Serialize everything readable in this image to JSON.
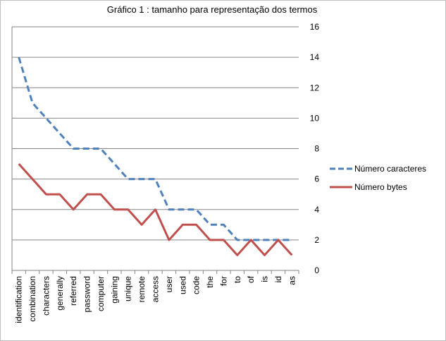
{
  "chart_data": {
    "type": "line",
    "title": "Gráfico 1 : tamanho para representação dos termos",
    "categories": [
      "identification",
      "combination",
      "characters",
      "generally",
      "referred",
      "password",
      "computer",
      "gaining",
      "unique",
      "remote",
      "access",
      "user",
      "used",
      "code",
      "the",
      "for",
      "to",
      "of",
      "is",
      "id",
      "as"
    ],
    "series": [
      {
        "name": "Número caracteres",
        "color": "#4f81bd",
        "style": "dashed",
        "values": [
          14,
          11,
          10,
          9,
          8,
          8,
          8,
          7,
          6,
          6,
          6,
          4,
          4,
          4,
          3,
          3,
          2,
          2,
          2,
          2,
          2
        ]
      },
      {
        "name": "Número bytes",
        "color": "#c0504d",
        "style": "solid",
        "values": [
          7,
          6,
          5,
          5,
          4,
          5,
          5,
          4,
          4,
          3,
          4,
          2,
          3,
          3,
          2,
          2,
          1,
          2,
          1,
          2,
          1
        ]
      }
    ],
    "ylim": [
      0,
      16
    ],
    "yticks": [
      0,
      2,
      4,
      6,
      8,
      10,
      12,
      14,
      16
    ],
    "y_axis_side": "right",
    "grid": true,
    "legend_position": "right"
  }
}
